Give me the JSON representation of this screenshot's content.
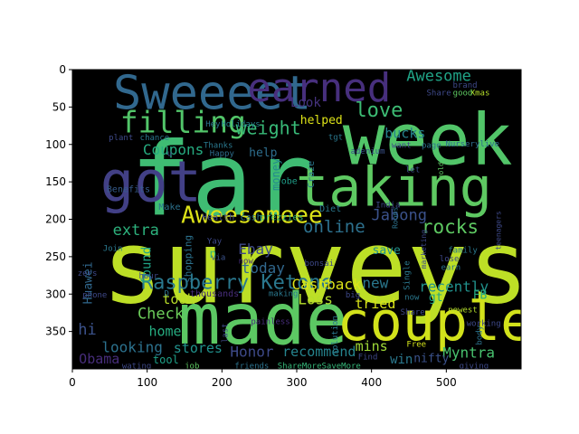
{
  "chart_data": {
    "type": "wordcloud",
    "background_color": "#000000",
    "colormap": "viridis",
    "xlim": [
      0,
      600
    ],
    "ylim": [
      400,
      0
    ],
    "xticks": [
      0,
      100,
      200,
      300,
      400,
      500
    ],
    "yticks": [
      0,
      50,
      100,
      150,
      200,
      250,
      300,
      350
    ],
    "words": [
      {
        "text": "surveys",
        "x": 325,
        "y": 265,
        "size": 112,
        "color": "#bddf26",
        "rotate": 0
      },
      {
        "text": "far",
        "x": 200,
        "y": 148,
        "size": 112,
        "color": "#3fbc73",
        "rotate": 0
      },
      {
        "text": "week",
        "x": 475,
        "y": 95,
        "size": 78,
        "color": "#52c569",
        "rotate": 0
      },
      {
        "text": "made",
        "x": 255,
        "y": 335,
        "size": 78,
        "color": "#5cc863",
        "rotate": 0
      },
      {
        "text": "couple",
        "x": 485,
        "y": 337,
        "size": 60,
        "color": "#d2e21b",
        "rotate": 0
      },
      {
        "text": "taking",
        "x": 430,
        "y": 158,
        "size": 60,
        "color": "#5ec962",
        "rotate": 0
      },
      {
        "text": "got",
        "x": 105,
        "y": 150,
        "size": 62,
        "color": "#424086",
        "rotate": 0
      },
      {
        "text": "Sweeeet",
        "x": 187,
        "y": 32,
        "size": 52,
        "color": "#31688e",
        "rotate": 0
      },
      {
        "text": "earned",
        "x": 330,
        "y": 25,
        "size": 44,
        "color": "#472f7d",
        "rotate": 0
      },
      {
        "text": "filling",
        "x": 148,
        "y": 70,
        "size": 33,
        "color": "#52c569",
        "rotate": 0
      },
      {
        "text": "Aweesomeee",
        "x": 240,
        "y": 195,
        "size": 26,
        "color": "#dde318",
        "rotate": 0
      },
      {
        "text": "Raspberry Ketone",
        "x": 220,
        "y": 285,
        "size": 22,
        "color": "#2a788e",
        "rotate": 0
      },
      {
        "text": "love",
        "x": 410,
        "y": 55,
        "size": 22,
        "color": "#3dbc74",
        "rotate": 0
      },
      {
        "text": "weight",
        "x": 262,
        "y": 78,
        "size": 20,
        "color": "#38b977",
        "rotate": 0
      },
      {
        "text": "Awesome",
        "x": 490,
        "y": 9,
        "size": 17,
        "color": "#20a386",
        "rotate": 0
      },
      {
        "text": "online",
        "x": 350,
        "y": 210,
        "size": 19,
        "color": "#2d718e",
        "rotate": 0
      },
      {
        "text": "rocks",
        "x": 505,
        "y": 210,
        "size": 21,
        "color": "#5ec962",
        "rotate": 0
      },
      {
        "text": "bucks",
        "x": 445,
        "y": 85,
        "size": 15,
        "color": "#26828e",
        "rotate": 0
      },
      {
        "text": "Coupons",
        "x": 135,
        "y": 107,
        "size": 16,
        "color": "#26ad81",
        "rotate": 0
      },
      {
        "text": "Jabong",
        "x": 437,
        "y": 195,
        "size": 17,
        "color": "#3b528b",
        "rotate": 0
      },
      {
        "text": "extra",
        "x": 85,
        "y": 215,
        "size": 17,
        "color": "#2db27d",
        "rotate": 0
      },
      {
        "text": "Ebay",
        "x": 245,
        "y": 240,
        "size": 16,
        "color": "#3e4989",
        "rotate": 0
      },
      {
        "text": "today",
        "x": 255,
        "y": 265,
        "size": 16,
        "color": "#31688e",
        "rotate": 0
      },
      {
        "text": "Cashback",
        "x": 340,
        "y": 287,
        "size": 16,
        "color": "#dde318",
        "rotate": 0
      },
      {
        "text": "new",
        "x": 405,
        "y": 285,
        "size": 16,
        "color": "#2a788e",
        "rotate": 0
      },
      {
        "text": "recently",
        "x": 510,
        "y": 290,
        "size": 16,
        "color": "#21918c",
        "rotate": 0
      },
      {
        "text": "Loss",
        "x": 325,
        "y": 307,
        "size": 16,
        "color": "#b5de2b",
        "rotate": 0
      },
      {
        "text": "tried",
        "x": 405,
        "y": 313,
        "size": 15,
        "color": "#d8e219",
        "rotate": 0
      },
      {
        "text": "Check",
        "x": 118,
        "y": 327,
        "size": 17,
        "color": "#6ccd5a",
        "rotate": 0
      },
      {
        "text": "took",
        "x": 142,
        "y": 307,
        "size": 15,
        "color": "#b8de29",
        "rotate": 0
      },
      {
        "text": "home",
        "x": 124,
        "y": 350,
        "size": 15,
        "color": "#26ad81",
        "rotate": 0
      },
      {
        "text": "hi",
        "x": 20,
        "y": 348,
        "size": 17,
        "color": "#3b528b",
        "rotate": 0
      },
      {
        "text": "looking",
        "x": 80,
        "y": 371,
        "size": 16,
        "color": "#2c728e",
        "rotate": 0
      },
      {
        "text": "stores",
        "x": 168,
        "y": 372,
        "size": 15,
        "color": "#21918c",
        "rotate": 0
      },
      {
        "text": "Honor",
        "x": 240,
        "y": 377,
        "size": 16,
        "color": "#3e4a89",
        "rotate": 0
      },
      {
        "text": "recommend",
        "x": 330,
        "y": 377,
        "size": 15,
        "color": "#25848e",
        "rotate": 0
      },
      {
        "text": "mins",
        "x": 400,
        "y": 370,
        "size": 15,
        "color": "#a0da39",
        "rotate": 0
      },
      {
        "text": "Myntra",
        "x": 530,
        "y": 378,
        "size": 16,
        "color": "#48c16e",
        "rotate": 0
      },
      {
        "text": "Obama",
        "x": 36,
        "y": 387,
        "size": 15,
        "color": "#472d7b",
        "rotate": 0
      },
      {
        "text": "tool",
        "x": 125,
        "y": 388,
        "size": 12,
        "color": "#1fa188",
        "rotate": 0
      },
      {
        "text": "win",
        "x": 440,
        "y": 388,
        "size": 14,
        "color": "#2a788e",
        "rotate": 0
      },
      {
        "text": "nifty",
        "x": 480,
        "y": 387,
        "size": 13,
        "color": "#3b528b",
        "rotate": 0
      },
      {
        "text": "help",
        "x": 255,
        "y": 112,
        "size": 13,
        "color": "#2e6e8e",
        "rotate": 0
      },
      {
        "text": "money",
        "x": 272,
        "y": 140,
        "size": 12,
        "color": "#23898e",
        "rotate": -90
      },
      {
        "text": "Look",
        "x": 312,
        "y": 45,
        "size": 14,
        "color": "#46337f",
        "rotate": 0
      },
      {
        "text": "helped",
        "x": 333,
        "y": 68,
        "size": 13,
        "color": "#dde318",
        "rotate": 0
      },
      {
        "text": "found",
        "x": 100,
        "y": 262,
        "size": 14,
        "color": "#20a486",
        "rotate": -90
      },
      {
        "text": "n",
        "x": 188,
        "y": 247,
        "size": 13,
        "color": "#35b779",
        "rotate": 0
      },
      {
        "text": "save",
        "x": 420,
        "y": 242,
        "size": 13,
        "color": "#21918c",
        "rotate": 0
      },
      {
        "text": "gt",
        "x": 486,
        "y": 305,
        "size": 13,
        "color": "#20a486",
        "rotate": 0
      },
      {
        "text": "FB",
        "x": 545,
        "y": 302,
        "size": 13,
        "color": "#26ad81",
        "rotate": 0
      },
      {
        "text": "Huawei",
        "x": 22,
        "y": 285,
        "size": 13,
        "color": "#31688e",
        "rotate": -90
      },
      {
        "text": "shopping",
        "x": 155,
        "y": 253,
        "size": 11,
        "color": "#2c728e",
        "rotate": -90
      },
      {
        "text": "Health",
        "x": 195,
        "y": 198,
        "size": 10,
        "color": "#3e4989",
        "rotate": 0
      },
      {
        "text": "cash",
        "x": 239,
        "y": 198,
        "size": 10,
        "color": "#2a788e",
        "rotate": 0
      },
      {
        "text": "prezzies",
        "x": 280,
        "y": 198,
        "size": 10,
        "color": "#35b779",
        "rotate": 0
      },
      {
        "text": "Diet",
        "x": 345,
        "y": 187,
        "size": 10,
        "color": "#2a788e",
        "rotate": 0
      },
      {
        "text": "India",
        "x": 422,
        "y": 182,
        "size": 9,
        "color": "#3e4989",
        "rotate": 0
      },
      {
        "text": "Benefits",
        "x": 75,
        "y": 161,
        "size": 10,
        "color": "#365c8d",
        "rotate": 0
      },
      {
        "text": "Make",
        "x": 130,
        "y": 184,
        "size": 10,
        "color": "#2c728e",
        "rotate": 0
      },
      {
        "text": "obe",
        "x": 290,
        "y": 150,
        "size": 10,
        "color": "#1f9e89",
        "rotate": 0
      },
      {
        "text": "Craze",
        "x": 320,
        "y": 140,
        "size": 10,
        "color": "#2a788e",
        "rotate": -90
      },
      {
        "text": "adenium",
        "x": 395,
        "y": 110,
        "size": 9,
        "color": "#3b528b",
        "rotate": 0
      },
      {
        "text": "tgt",
        "x": 352,
        "y": 91,
        "size": 9,
        "color": "#2a788e",
        "rotate": 0
      },
      {
        "text": "want",
        "x": 440,
        "y": 102,
        "size": 9,
        "color": "#3e4989",
        "rotate": 0
      },
      {
        "text": "page",
        "x": 480,
        "y": 102,
        "size": 9,
        "color": "#2c728e",
        "rotate": 0
      },
      {
        "text": "Nurserylive",
        "x": 535,
        "y": 100,
        "size": 9,
        "color": "#2e6e8e",
        "rotate": 0
      },
      {
        "text": "let",
        "x": 455,
        "y": 135,
        "size": 9,
        "color": "#3b528b",
        "rotate": 0
      },
      {
        "text": "gold",
        "x": 493,
        "y": 135,
        "size": 8,
        "color": "#5ec962",
        "rotate": -90
      },
      {
        "text": "Xmas",
        "x": 545,
        "y": 32,
        "size": 9,
        "color": "#b5de2b",
        "rotate": 0
      },
      {
        "text": "brand",
        "x": 525,
        "y": 22,
        "size": 9,
        "color": "#3e4989",
        "rotate": 0
      },
      {
        "text": "good",
        "x": 522,
        "y": 32,
        "size": 9,
        "color": "#5ec962",
        "rotate": 0
      },
      {
        "text": "Share",
        "x": 490,
        "y": 32,
        "size": 9,
        "color": "#3e4989",
        "rotate": 0
      },
      {
        "text": "Hey",
        "x": 188,
        "y": 74,
        "size": 9,
        "color": "#2c728e",
        "rotate": 0
      },
      {
        "text": "Holidays",
        "x": 225,
        "y": 74,
        "size": 9,
        "color": "#26828e",
        "rotate": 0
      },
      {
        "text": "plant",
        "x": 65,
        "y": 92,
        "size": 9,
        "color": "#3e4989",
        "rotate": 0
      },
      {
        "text": "chance",
        "x": 110,
        "y": 92,
        "size": 9,
        "color": "#2a788e",
        "rotate": 0
      },
      {
        "text": "u",
        "x": 130,
        "y": 113,
        "size": 9,
        "color": "#3e4989",
        "rotate": 0
      },
      {
        "text": "Thanks",
        "x": 195,
        "y": 102,
        "size": 9,
        "color": "#2a788e",
        "rotate": 0
      },
      {
        "text": "Happy",
        "x": 200,
        "y": 113,
        "size": 9,
        "color": "#2e6e8e",
        "rotate": 0
      },
      {
        "text": "Yay",
        "x": 190,
        "y": 230,
        "size": 9,
        "color": "#3e4989",
        "rotate": 0
      },
      {
        "text": "via",
        "x": 195,
        "y": 252,
        "size": 9,
        "color": "#3b528b",
        "rotate": 0
      },
      {
        "text": "now",
        "x": 232,
        "y": 257,
        "size": 9,
        "color": "#472d7b",
        "rotate": 0
      },
      {
        "text": "Join",
        "x": 54,
        "y": 240,
        "size": 9,
        "color": "#2a788e",
        "rotate": 0
      },
      {
        "text": "hour",
        "x": 102,
        "y": 277,
        "size": 9,
        "color": "#3e4989",
        "rotate": 0
      },
      {
        "text": "bonsai",
        "x": 330,
        "y": 260,
        "size": 9,
        "color": "#3e4989",
        "rotate": 0
      },
      {
        "text": "thousands",
        "x": 190,
        "y": 300,
        "size": 10,
        "color": "#472d7b",
        "rotate": 0
      },
      {
        "text": "phone",
        "x": 30,
        "y": 302,
        "size": 9,
        "color": "#3e4989",
        "rotate": 0
      },
      {
        "text": "D",
        "x": 126,
        "y": 300,
        "size": 9,
        "color": "#2c728e",
        "rotate": 0
      },
      {
        "text": "making",
        "x": 282,
        "y": 300,
        "size": 9,
        "color": "#2a788e",
        "rotate": 0
      },
      {
        "text": "big",
        "x": 375,
        "y": 302,
        "size": 9,
        "color": "#3e4989",
        "rotate": 0
      },
      {
        "text": "last",
        "x": 205,
        "y": 352,
        "size": 9,
        "color": "#3e4989",
        "rotate": -90
      },
      {
        "text": "painless",
        "x": 265,
        "y": 338,
        "size": 9,
        "color": "#472d7b",
        "rotate": 0
      },
      {
        "text": "solution",
        "x": 352,
        "y": 355,
        "size": 9,
        "color": "#2a788e",
        "rotate": -90
      },
      {
        "text": "Find",
        "x": 395,
        "y": 385,
        "size": 9,
        "color": "#3e4989",
        "rotate": 0
      },
      {
        "text": "wating",
        "x": 86,
        "y": 397,
        "size": 9,
        "color": "#3e4989",
        "rotate": 0
      },
      {
        "text": "job",
        "x": 160,
        "y": 397,
        "size": 9,
        "color": "#5ec962",
        "rotate": 0
      },
      {
        "text": "friends",
        "x": 240,
        "y": 397,
        "size": 9,
        "color": "#2c728e",
        "rotate": 0
      },
      {
        "text": "ShareMoreSaveMore",
        "x": 330,
        "y": 397,
        "size": 9,
        "color": "#35b779",
        "rotate": 0
      },
      {
        "text": "Free",
        "x": 460,
        "y": 368,
        "size": 9,
        "color": "#d2e21b",
        "rotate": 0
      },
      {
        "text": "giving",
        "x": 537,
        "y": 397,
        "size": 9,
        "color": "#3e4989",
        "rotate": 0
      },
      {
        "text": "now",
        "x": 454,
        "y": 305,
        "size": 9,
        "color": "#2a788e",
        "rotate": 0
      },
      {
        "text": "newest",
        "x": 522,
        "y": 322,
        "size": 9,
        "color": "#b5de2b",
        "rotate": 0
      },
      {
        "text": "working",
        "x": 550,
        "y": 340,
        "size": 9,
        "color": "#3e4989",
        "rotate": 0
      },
      {
        "text": "body",
        "x": 545,
        "y": 355,
        "size": 9,
        "color": "#2c728e",
        "rotate": -90
      },
      {
        "text": "family",
        "x": 522,
        "y": 242,
        "size": 9,
        "color": "#2a788e",
        "rotate": 0
      },
      {
        "text": "lose",
        "x": 504,
        "y": 254,
        "size": 9,
        "color": "#3e4989",
        "rotate": 0
      },
      {
        "text": "earn",
        "x": 506,
        "y": 265,
        "size": 9,
        "color": "#2c728e",
        "rotate": 0
      },
      {
        "text": "Single",
        "x": 448,
        "y": 275,
        "size": 9,
        "color": "#2a788e",
        "rotate": -90
      },
      {
        "text": "marketing",
        "x": 470,
        "y": 240,
        "size": 8,
        "color": "#3e4989",
        "rotate": -90
      },
      {
        "text": "Rooms",
        "x": 432,
        "y": 198,
        "size": 8,
        "color": "#2c728e",
        "rotate": -90
      },
      {
        "text": "teenagers",
        "x": 570,
        "y": 215,
        "size": 8,
        "color": "#3e4989",
        "rotate": -90
      },
      {
        "text": "Share",
        "x": 455,
        "y": 325,
        "size": 9,
        "color": "#3e4989",
        "rotate": 0
      },
      {
        "text": "zers",
        "x": 20,
        "y": 273,
        "size": 9,
        "color": "#3e4989",
        "rotate": 0
      }
    ]
  }
}
